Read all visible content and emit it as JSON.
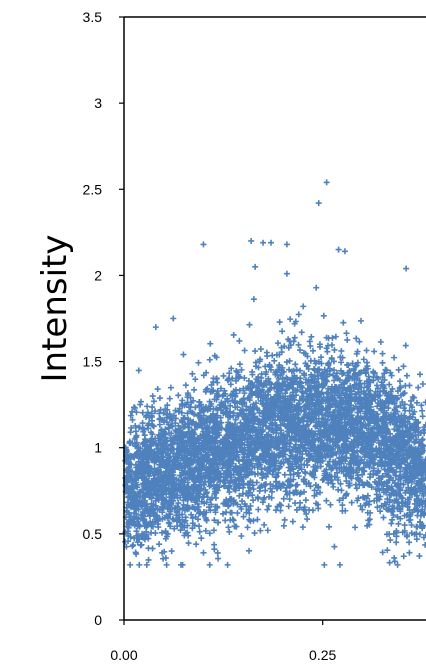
{
  "chart_data": {
    "type": "scatter",
    "title": "",
    "xlabel": "",
    "ylabel": "Intensity",
    "xlim": [
      0,
      0.38
    ],
    "ylim": [
      0,
      3.5
    ],
    "x_ticks": [
      "0.00",
      "0.25"
    ],
    "x_tick_values": [
      0,
      0.25
    ],
    "y_ticks": [
      "0",
      "0.5",
      "1",
      "1.5",
      "2",
      "2.5",
      "3",
      "3.5"
    ],
    "y_tick_values": [
      0,
      0.5,
      1,
      1.5,
      2,
      2.5,
      3,
      3.5
    ],
    "marker": "plus",
    "legend": "none",
    "grid": false,
    "colors": {
      "points": "#4f81bd",
      "axis": "#000000"
    },
    "point_cloud": {
      "approx_count": 5000,
      "center_trend": [
        {
          "x": 0.0,
          "y": 0.75
        },
        {
          "x": 0.05,
          "y": 0.85
        },
        {
          "x": 0.1,
          "y": 0.95
        },
        {
          "x": 0.15,
          "y": 1.05
        },
        {
          "x": 0.2,
          "y": 1.12
        },
        {
          "x": 0.25,
          "y": 1.15
        },
        {
          "x": 0.3,
          "y": 1.1
        },
        {
          "x": 0.35,
          "y": 0.95
        },
        {
          "x": 0.38,
          "y": 0.85
        }
      ],
      "spread_sd": 0.22
    },
    "outliers": [
      {
        "x": 0.255,
        "y": 2.54
      },
      {
        "x": 0.245,
        "y": 2.42
      },
      {
        "x": 0.16,
        "y": 2.2
      },
      {
        "x": 0.175,
        "y": 2.19
      },
      {
        "x": 0.185,
        "y": 2.19
      },
      {
        "x": 0.205,
        "y": 2.18
      },
      {
        "x": 0.1,
        "y": 2.18
      },
      {
        "x": 0.27,
        "y": 2.15
      },
      {
        "x": 0.278,
        "y": 2.14
      },
      {
        "x": 0.165,
        "y": 2.05
      },
      {
        "x": 0.355,
        "y": 2.04
      },
      {
        "x": 0.205,
        "y": 2.01
      },
      {
        "x": 0.062,
        "y": 1.75
      },
      {
        "x": 0.04,
        "y": 1.7
      },
      {
        "x": 0.03,
        "y": 0.55
      },
      {
        "x": 0.048,
        "y": 0.39
      },
      {
        "x": 0.06,
        "y": 0.4
      },
      {
        "x": 0.1,
        "y": 0.39
      },
      {
        "x": 0.34,
        "y": 0.36
      },
      {
        "x": 0.352,
        "y": 0.37
      },
      {
        "x": 0.005,
        "y": 0.5
      }
    ]
  }
}
